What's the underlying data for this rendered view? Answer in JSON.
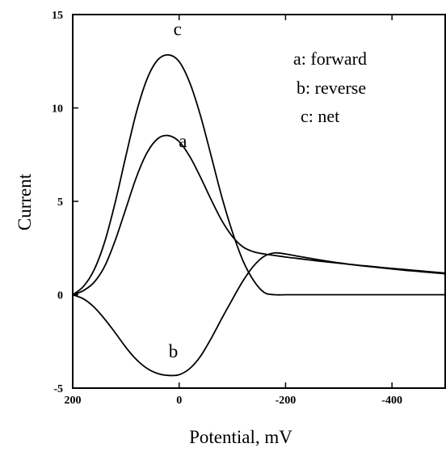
{
  "chart_data": {
    "type": "line",
    "xlabel": "Potential, mV",
    "ylabel": "Current",
    "xlim": [
      200,
      -500
    ],
    "ylim": [
      -5,
      15
    ],
    "x_reversed": true,
    "grid": false,
    "xticks": [
      {
        "value": 200,
        "label": "200"
      },
      {
        "value": 0,
        "label": "0"
      },
      {
        "value": -200,
        "label": "-200"
      },
      {
        "value": -400,
        "label": "-400"
      }
    ],
    "yticks": [
      {
        "value": -5,
        "label": "-5"
      },
      {
        "value": 0,
        "label": "0"
      },
      {
        "value": 5,
        "label": "5"
      },
      {
        "value": 10,
        "label": "10"
      },
      {
        "value": 15,
        "label": "15"
      }
    ],
    "legend_position": "top-right",
    "legend": [
      "a: forward",
      "b: reverse",
      "c: net"
    ],
    "x": [
      200,
      180,
      160,
      140,
      120,
      100,
      80,
      60,
      40,
      20,
      0,
      -20,
      -40,
      -60,
      -80,
      -100,
      -120,
      -140,
      -160,
      -180,
      -200,
      -220,
      -240,
      -260,
      -280,
      -300,
      -320,
      -340,
      -360,
      -380,
      -400,
      -420,
      -440,
      -460,
      -480,
      -500
    ],
    "series": [
      {
        "name": "a",
        "values": [
          0.0,
          0.22,
          0.66,
          1.52,
          2.92,
          4.62,
          6.32,
          7.62,
          8.36,
          8.52,
          8.2,
          7.4,
          6.3,
          5.1,
          3.98,
          3.12,
          2.56,
          2.3,
          2.18,
          2.1,
          2.02,
          1.95,
          1.88,
          1.81,
          1.75,
          1.69,
          1.63,
          1.57,
          1.52,
          1.46,
          1.41,
          1.36,
          1.31,
          1.26,
          1.21,
          1.16
        ]
      },
      {
        "name": "b",
        "values": [
          0.0,
          -0.22,
          -0.66,
          -1.3,
          -2.04,
          -2.82,
          -3.48,
          -3.95,
          -4.22,
          -4.32,
          -4.28,
          -3.95,
          -3.3,
          -2.35,
          -1.28,
          -0.25,
          0.74,
          1.54,
          2.06,
          2.24,
          2.18,
          2.08,
          1.98,
          1.88,
          1.79,
          1.71,
          1.63,
          1.56,
          1.5,
          1.44,
          1.38,
          1.32,
          1.27,
          1.22,
          1.17,
          1.12
        ]
      },
      {
        "name": "c",
        "values": [
          0.0,
          0.44,
          1.32,
          2.82,
          4.96,
          7.44,
          9.8,
          11.57,
          12.58,
          12.84,
          12.48,
          11.35,
          9.6,
          7.45,
          5.26,
          3.37,
          1.82,
          0.76,
          0.12,
          0.0,
          0.0,
          0.0,
          0.0,
          0.0,
          0.0,
          0.0,
          0.0,
          0.0,
          0.0,
          0.0,
          0.0,
          0.0,
          0.0,
          0.0,
          0.0,
          0.0
        ]
      }
    ],
    "curve_labels": [
      {
        "text": "c",
        "x": 3,
        "y": 13.9
      },
      {
        "text": "a",
        "x": -7,
        "y": 7.9
      },
      {
        "text": "b",
        "x": 11,
        "y": -3.35
      }
    ]
  }
}
